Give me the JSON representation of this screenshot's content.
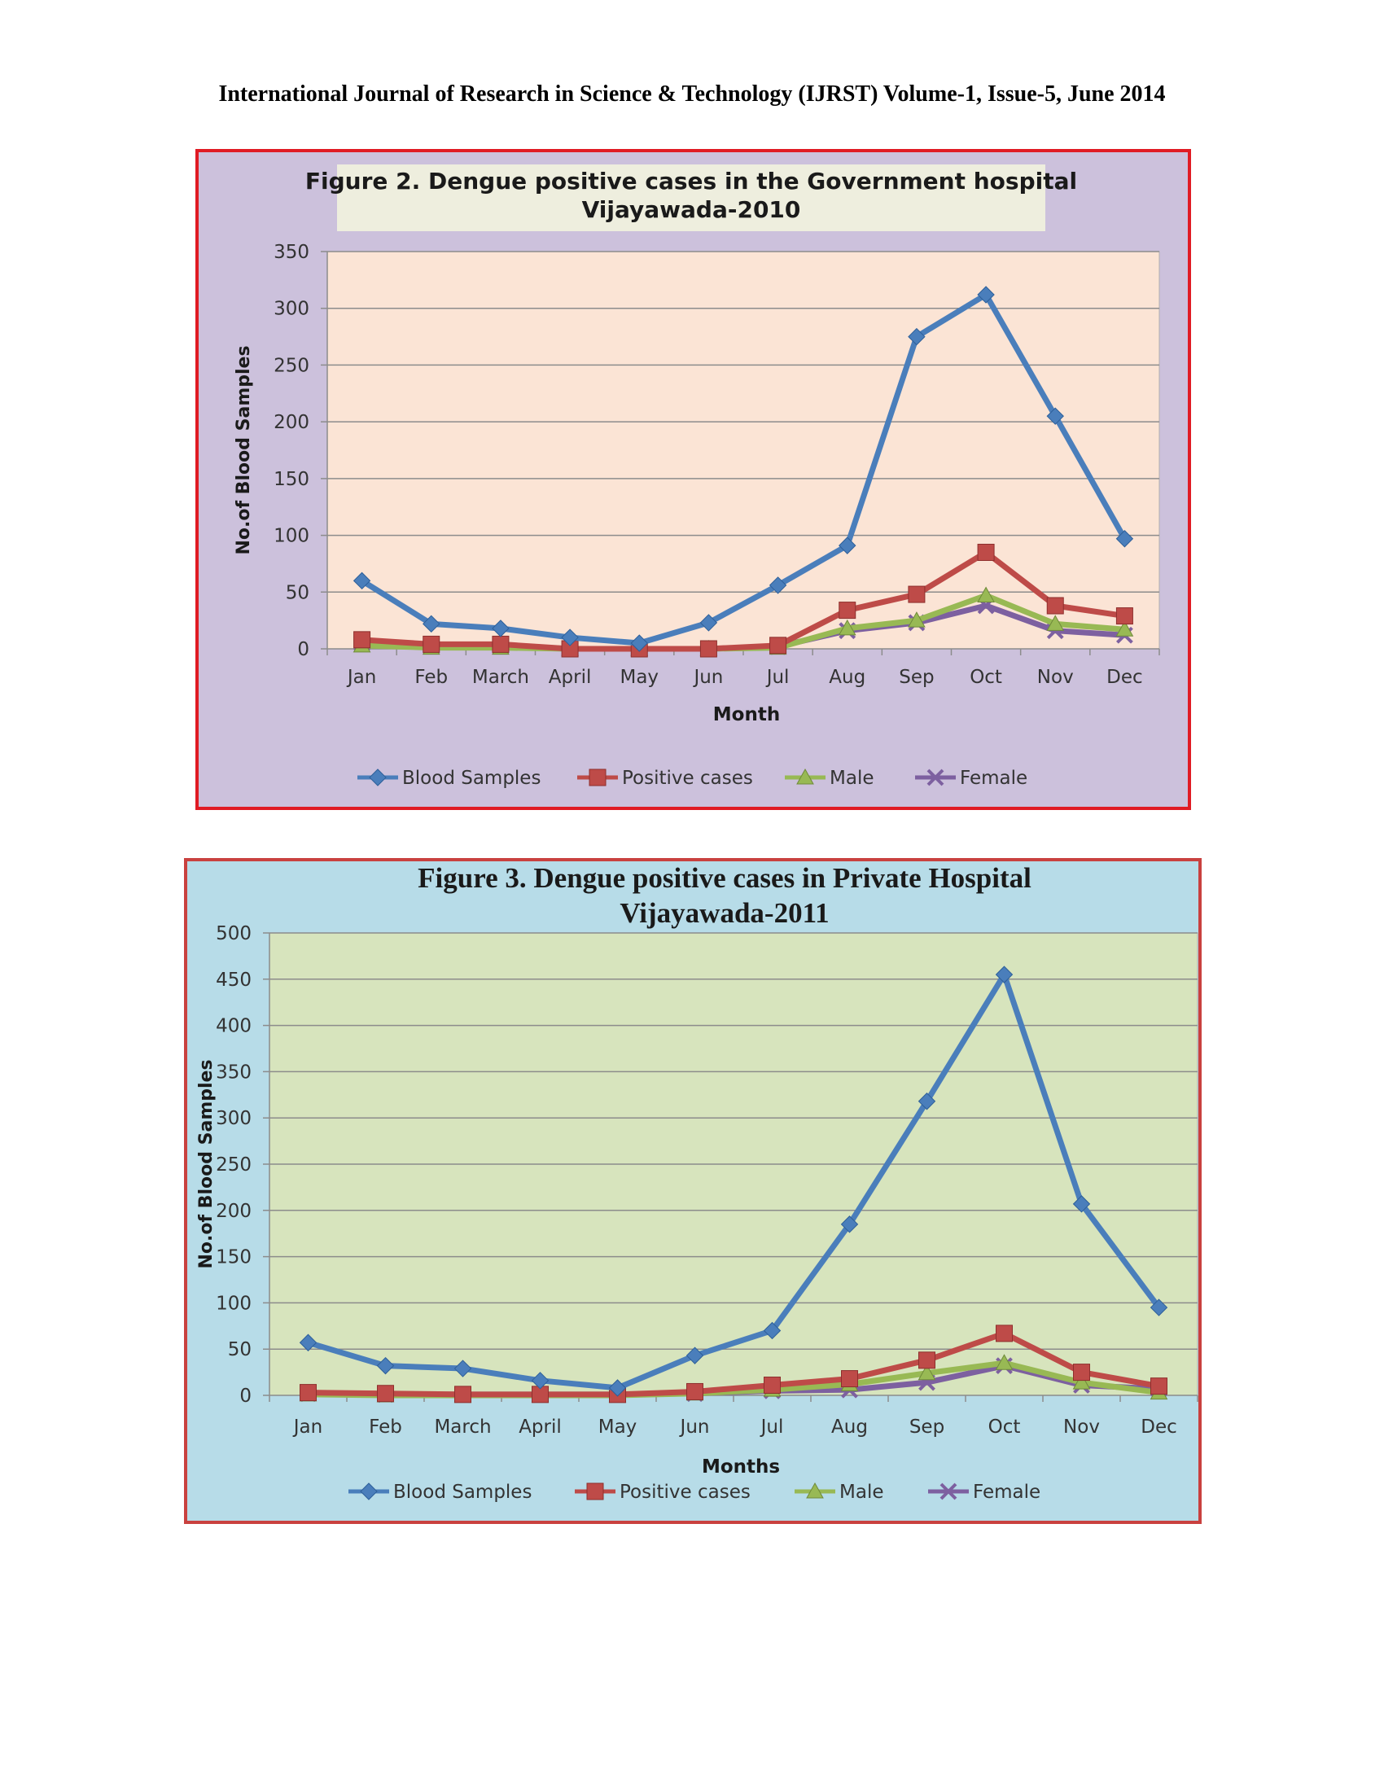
{
  "header": {
    "text": "International Journal of Research in Science & Technology (IJRST) Volume-1, Issue-5, June 2014"
  },
  "chart_data": [
    {
      "type": "line",
      "title": "Figure 2. Dengue positive cases in the Government hospital",
      "subtitle": "Vijayawada-2010",
      "xlabel": "Month",
      "ylabel": "No.of Blood Samples",
      "ylim": [
        0,
        350
      ],
      "yticks": [
        "0",
        "50",
        "100",
        "150",
        "200",
        "250",
        "300",
        "350"
      ],
      "categories": [
        "Jan",
        "Feb",
        "March",
        "April",
        "May",
        "Jun",
        "Jul",
        "Aug",
        "Sep",
        "Oct",
        "Nov",
        "Dec"
      ],
      "grid": true,
      "legend": "bottom",
      "colors": {
        "frame_border": "#e01b24",
        "frame_bg": "#ccc1dc",
        "plot_bg": "#fbe4d5",
        "title_bg": "#eeeede"
      },
      "series": [
        {
          "name": "Blood Samples",
          "color": "#4a7ebb",
          "marker": "diamond",
          "values": [
            60,
            22,
            18,
            10,
            5,
            23,
            56,
            91,
            275,
            312,
            205,
            97
          ]
        },
        {
          "name": "Positive cases",
          "color": "#be4b48",
          "marker": "square",
          "values": [
            8,
            4,
            4,
            0,
            0,
            0,
            3,
            34,
            48,
            85,
            38,
            29
          ]
        },
        {
          "name": "Male",
          "color": "#98b954",
          "marker": "triangle",
          "values": [
            3,
            1,
            1,
            0,
            0,
            0,
            1,
            18,
            25,
            47,
            22,
            17
          ]
        },
        {
          "name": "Female",
          "color": "#7d60a0",
          "marker": "x",
          "values": [
            5,
            3,
            3,
            0,
            0,
            0,
            2,
            16,
            23,
            38,
            16,
            12
          ]
        }
      ]
    },
    {
      "type": "line",
      "title": "Figure 3. Dengue positive cases in Private Hospital",
      "subtitle": "Vijayawada-2011",
      "xlabel": "Months",
      "ylabel": "No.of Blood Samples",
      "ylim": [
        0,
        500
      ],
      "yticks": [
        "0",
        "50",
        "100",
        "150",
        "200",
        "250",
        "300",
        "350",
        "400",
        "450",
        "500"
      ],
      "categories": [
        "Jan",
        "Feb",
        "March",
        "April",
        "May",
        "Jun",
        "Jul",
        "Aug",
        "Sep",
        "Oct",
        "Nov",
        "Dec"
      ],
      "grid": true,
      "legend": "bottom",
      "colors": {
        "frame_border": "#c9413f",
        "frame_bg": "#b7dce8",
        "plot_bg": "#d7e4bd",
        "title_bg": "#b7dce8"
      },
      "series": [
        {
          "name": "Blood Samples",
          "color": "#4a7ebb",
          "marker": "diamond",
          "values": [
            57,
            32,
            29,
            16,
            8,
            43,
            70,
            185,
            318,
            455,
            207,
            95
          ]
        },
        {
          "name": "Positive cases",
          "color": "#be4b48",
          "marker": "square",
          "values": [
            3,
            2,
            1,
            1,
            1,
            4,
            11,
            18,
            38,
            67,
            25,
            10
          ]
        },
        {
          "name": "Male",
          "color": "#98b954",
          "marker": "triangle",
          "values": [
            1,
            0,
            0,
            0,
            0,
            2,
            6,
            12,
            24,
            35,
            14,
            3
          ]
        },
        {
          "name": "Female",
          "color": "#7d60a0",
          "marker": "x",
          "values": [
            2,
            1,
            1,
            1,
            1,
            2,
            5,
            6,
            14,
            32,
            11,
            7
          ]
        }
      ]
    }
  ]
}
